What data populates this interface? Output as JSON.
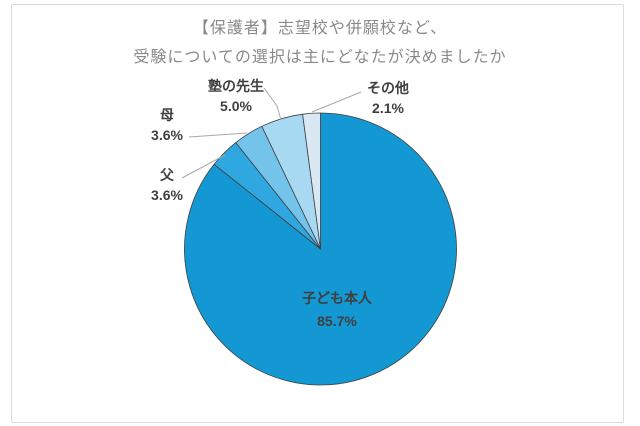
{
  "title": {
    "line1": "【保護者】志望校や併願校など、",
    "line2": "受験についての選択は主にどなたが決めましたか",
    "color": "#8A8A8A"
  },
  "chart_data": {
    "type": "pie",
    "title": "【保護者】志望校や併願校など、受験についての選択は主にどなたが決めましたか",
    "unit": "%",
    "start_angle_deg": 0,
    "direction": "clockwise",
    "legend": "none",
    "slices": [
      {
        "label": "子ども本人",
        "value": 85.7,
        "pct_label": "85.7%",
        "color": "#1398D4"
      },
      {
        "label": "父",
        "value": 3.6,
        "pct_label": "3.6%",
        "color": "#2FA7E0"
      },
      {
        "label": "母",
        "value": 3.6,
        "pct_label": "3.6%",
        "color": "#74C3EB"
      },
      {
        "label": "塾の先生",
        "value": 5.0,
        "pct_label": "5.0%",
        "color": "#A8D9F2"
      },
      {
        "label": "その他",
        "value": 2.1,
        "pct_label": "2.1%",
        "color": "#DAE8F3"
      }
    ],
    "slice_border_color": "#404040",
    "leader_line_color": "#A8A8A8",
    "label_color": "#3F3F3F",
    "card_border_color": "#DBDBDB",
    "background_color": "#FFFFFF"
  }
}
